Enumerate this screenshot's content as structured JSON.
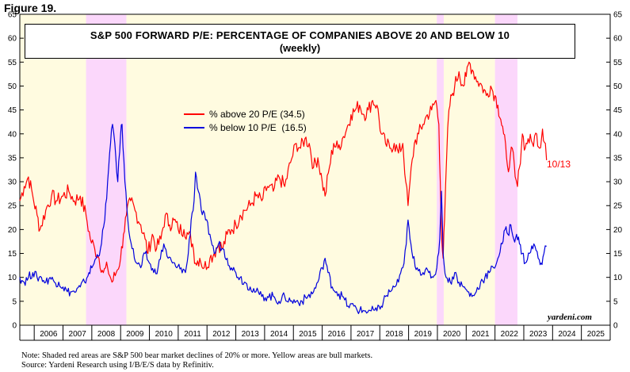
{
  "figure_label": "Figure 19.",
  "title_line1": "S&P 500 FORWARD P/E: PERCENTAGE OF COMPANIES ABOVE 20 AND BELOW 10",
  "title_line2": "(weekly)",
  "end_label": "10/13",
  "watermark": "yardeni.com",
  "note_line1": "Note: Shaded red areas are S&P 500 bear market declines of 20% or more. Yellow areas are bull markets.",
  "note_line2": "Source: Yardeni Research using I/B/E/S data by Refinitiv.",
  "colors": {
    "above20": "#ff0000",
    "below10": "#0000dd",
    "bull": "#fffbe0",
    "bear": "#fbd7fb"
  },
  "chart_data": {
    "type": "line",
    "title": "S&P 500 FORWARD P/E: PERCENTAGE OF COMPANIES ABOVE 20 AND BELOW 10",
    "subtitle": "(weekly)",
    "xlim": [
      2005.5,
      2026.0
    ],
    "ylim": [
      0,
      65
    ],
    "y_ticks": [
      0,
      5,
      10,
      15,
      20,
      25,
      30,
      35,
      40,
      45,
      50,
      55,
      60,
      65
    ],
    "x_ticks": [
      "2006",
      "2007",
      "2008",
      "2009",
      "2010",
      "2011",
      "2012",
      "2013",
      "2014",
      "2015",
      "2016",
      "2017",
      "2018",
      "2019",
      "2020",
      "2021",
      "2022",
      "2023",
      "2024",
      "2025"
    ],
    "grid": false,
    "legend_position": "center-left",
    "bull_periods": [
      [
        2005.5,
        2007.8
      ],
      [
        2009.2,
        2019.98
      ],
      [
        2020.22,
        2022.0
      ]
    ],
    "bear_periods": [
      [
        2007.8,
        2009.2
      ],
      [
        2019.98,
        2020.22
      ],
      [
        2022.0,
        2022.78
      ]
    ],
    "series": [
      {
        "name": "% above 20 P/E (34.5)",
        "color": "#ff0000",
        "points": [
          [
            2005.5,
            26
          ],
          [
            2005.65,
            29
          ],
          [
            2005.8,
            31
          ],
          [
            2005.95,
            27
          ],
          [
            2006.1,
            23
          ],
          [
            2006.2,
            20
          ],
          [
            2006.4,
            24
          ],
          [
            2006.6,
            27
          ],
          [
            2006.8,
            26
          ],
          [
            2007.0,
            27
          ],
          [
            2007.2,
            28
          ],
          [
            2007.4,
            26
          ],
          [
            2007.6,
            27
          ],
          [
            2007.8,
            23
          ],
          [
            2007.95,
            18
          ],
          [
            2008.1,
            16
          ],
          [
            2008.25,
            14
          ],
          [
            2008.4,
            11
          ],
          [
            2008.55,
            12
          ],
          [
            2008.7,
            9
          ],
          [
            2008.85,
            11
          ],
          [
            2009.0,
            14
          ],
          [
            2009.1,
            19
          ],
          [
            2009.2,
            23
          ],
          [
            2009.35,
            26
          ],
          [
            2009.5,
            24
          ],
          [
            2009.7,
            21
          ],
          [
            2009.85,
            18
          ],
          [
            2009.95,
            15
          ],
          [
            2010.1,
            19
          ],
          [
            2010.25,
            16
          ],
          [
            2010.4,
            18
          ],
          [
            2010.55,
            23
          ],
          [
            2010.7,
            21
          ],
          [
            2010.85,
            22
          ],
          [
            2011.0,
            20
          ],
          [
            2011.2,
            20
          ],
          [
            2011.35,
            19
          ],
          [
            2011.5,
            17
          ],
          [
            2011.6,
            13
          ],
          [
            2011.75,
            14
          ],
          [
            2011.9,
            12
          ],
          [
            2012.1,
            14
          ],
          [
            2012.25,
            15
          ],
          [
            2012.4,
            17
          ],
          [
            2012.55,
            16
          ],
          [
            2012.7,
            19
          ],
          [
            2012.85,
            20
          ],
          [
            2013.0,
            21
          ],
          [
            2013.15,
            23
          ],
          [
            2013.3,
            24
          ],
          [
            2013.5,
            25
          ],
          [
            2013.7,
            27
          ],
          [
            2013.9,
            26
          ],
          [
            2014.1,
            29
          ],
          [
            2014.3,
            28
          ],
          [
            2014.5,
            31
          ],
          [
            2014.7,
            29
          ],
          [
            2014.9,
            34
          ],
          [
            2015.1,
            38
          ],
          [
            2015.25,
            37
          ],
          [
            2015.4,
            39
          ],
          [
            2015.55,
            38
          ],
          [
            2015.7,
            33
          ],
          [
            2015.85,
            35
          ],
          [
            2016.0,
            30
          ],
          [
            2016.1,
            27
          ],
          [
            2016.25,
            33
          ],
          [
            2016.4,
            38
          ],
          [
            2016.55,
            37
          ],
          [
            2016.7,
            39
          ],
          [
            2016.85,
            41
          ],
          [
            2017.0,
            44
          ],
          [
            2017.15,
            45
          ],
          [
            2017.3,
            46
          ],
          [
            2017.45,
            44
          ],
          [
            2017.6,
            45
          ],
          [
            2017.75,
            47
          ],
          [
            2017.9,
            46
          ],
          [
            2018.05,
            40
          ],
          [
            2018.2,
            38
          ],
          [
            2018.35,
            37
          ],
          [
            2018.5,
            38
          ],
          [
            2018.65,
            36
          ],
          [
            2018.8,
            38
          ],
          [
            2018.9,
            30
          ],
          [
            2018.98,
            25
          ],
          [
            2019.05,
            30
          ],
          [
            2019.2,
            38
          ],
          [
            2019.35,
            40
          ],
          [
            2019.5,
            42
          ],
          [
            2019.65,
            44
          ],
          [
            2019.8,
            45
          ],
          [
            2019.95,
            47
          ],
          [
            2020.05,
            42
          ],
          [
            2020.1,
            30
          ],
          [
            2020.15,
            18
          ],
          [
            2020.2,
            14
          ],
          [
            2020.25,
            22
          ],
          [
            2020.32,
            35
          ],
          [
            2020.4,
            45
          ],
          [
            2020.5,
            48
          ],
          [
            2020.6,
            50
          ],
          [
            2020.75,
            53
          ],
          [
            2020.9,
            50
          ],
          [
            2021.0,
            52
          ],
          [
            2021.1,
            55
          ],
          [
            2021.25,
            53
          ],
          [
            2021.4,
            51
          ],
          [
            2021.55,
            50
          ],
          [
            2021.7,
            48
          ],
          [
            2021.85,
            50
          ],
          [
            2022.0,
            48
          ],
          [
            2022.1,
            46
          ],
          [
            2022.2,
            43
          ],
          [
            2022.3,
            40
          ],
          [
            2022.4,
            35
          ],
          [
            2022.5,
            33
          ],
          [
            2022.6,
            37
          ],
          [
            2022.7,
            31
          ],
          [
            2022.78,
            29
          ],
          [
            2022.85,
            33
          ],
          [
            2022.95,
            40
          ],
          [
            2023.05,
            37
          ],
          [
            2023.15,
            39
          ],
          [
            2023.3,
            38
          ],
          [
            2023.45,
            40
          ],
          [
            2023.55,
            37
          ],
          [
            2023.65,
            41
          ],
          [
            2023.75,
            38
          ],
          [
            2023.79,
            34.5
          ]
        ]
      },
      {
        "name": "% below 10 P/E  (16.5)",
        "color": "#0000dd",
        "points": [
          [
            2005.5,
            10
          ],
          [
            2005.65,
            9
          ],
          [
            2005.8,
            10
          ],
          [
            2005.95,
            11
          ],
          [
            2006.1,
            10
          ],
          [
            2006.25,
            10
          ],
          [
            2006.4,
            9
          ],
          [
            2006.55,
            10
          ],
          [
            2006.7,
            9
          ],
          [
            2006.85,
            9
          ],
          [
            2007.0,
            8
          ],
          [
            2007.15,
            7
          ],
          [
            2007.3,
            7
          ],
          [
            2007.45,
            7
          ],
          [
            2007.6,
            8
          ],
          [
            2007.75,
            9
          ],
          [
            2007.9,
            11
          ],
          [
            2008.0,
            12
          ],
          [
            2008.15,
            14
          ],
          [
            2008.3,
            16
          ],
          [
            2008.45,
            22
          ],
          [
            2008.55,
            30
          ],
          [
            2008.65,
            38
          ],
          [
            2008.72,
            42
          ],
          [
            2008.8,
            38
          ],
          [
            2008.9,
            30
          ],
          [
            2009.0,
            40
          ],
          [
            2009.05,
            42
          ],
          [
            2009.15,
            30
          ],
          [
            2009.25,
            22
          ],
          [
            2009.4,
            16
          ],
          [
            2009.55,
            13
          ],
          [
            2009.7,
            12
          ],
          [
            2009.85,
            15
          ],
          [
            2010.0,
            13
          ],
          [
            2010.15,
            11
          ],
          [
            2010.3,
            12
          ],
          [
            2010.5,
            17
          ],
          [
            2010.65,
            14
          ],
          [
            2010.8,
            13
          ],
          [
            2010.95,
            12
          ],
          [
            2011.1,
            12
          ],
          [
            2011.25,
            11
          ],
          [
            2011.35,
            15
          ],
          [
            2011.45,
            22
          ],
          [
            2011.55,
            26
          ],
          [
            2011.6,
            32
          ],
          [
            2011.7,
            28
          ],
          [
            2011.8,
            24
          ],
          [
            2011.95,
            22
          ],
          [
            2012.1,
            19
          ],
          [
            2012.25,
            15
          ],
          [
            2012.4,
            17
          ],
          [
            2012.55,
            16
          ],
          [
            2012.7,
            14
          ],
          [
            2012.85,
            12
          ],
          [
            2013.0,
            11
          ],
          [
            2013.15,
            10
          ],
          [
            2013.3,
            9
          ],
          [
            2013.5,
            8
          ],
          [
            2013.7,
            7
          ],
          [
            2013.9,
            6
          ],
          [
            2014.1,
            6
          ],
          [
            2014.3,
            6
          ],
          [
            2014.5,
            5
          ],
          [
            2014.7,
            6
          ],
          [
            2014.9,
            5
          ],
          [
            2015.1,
            5
          ],
          [
            2015.3,
            5
          ],
          [
            2015.5,
            6
          ],
          [
            2015.7,
            7
          ],
          [
            2015.85,
            9
          ],
          [
            2016.0,
            12
          ],
          [
            2016.1,
            14
          ],
          [
            2016.2,
            11
          ],
          [
            2016.35,
            8
          ],
          [
            2016.5,
            7
          ],
          [
            2016.7,
            6
          ],
          [
            2016.9,
            4
          ],
          [
            2017.1,
            4
          ],
          [
            2017.3,
            3
          ],
          [
            2017.5,
            3
          ],
          [
            2017.7,
            3
          ],
          [
            2017.9,
            3
          ],
          [
            2018.05,
            4
          ],
          [
            2018.2,
            6
          ],
          [
            2018.35,
            7
          ],
          [
            2018.5,
            8
          ],
          [
            2018.65,
            9
          ],
          [
            2018.8,
            12
          ],
          [
            2018.92,
            17
          ],
          [
            2018.98,
            22
          ],
          [
            2019.05,
            18
          ],
          [
            2019.15,
            14
          ],
          [
            2019.3,
            12
          ],
          [
            2019.5,
            11
          ],
          [
            2019.7,
            11
          ],
          [
            2019.85,
            10
          ],
          [
            2019.98,
            12
          ],
          [
            2020.08,
            18
          ],
          [
            2020.14,
            28
          ],
          [
            2020.2,
            15
          ],
          [
            2020.3,
            10
          ],
          [
            2020.45,
            9
          ],
          [
            2020.6,
            11
          ],
          [
            2020.75,
            9
          ],
          [
            2020.9,
            8
          ],
          [
            2021.05,
            7
          ],
          [
            2021.2,
            6
          ],
          [
            2021.35,
            7
          ],
          [
            2021.5,
            9
          ],
          [
            2021.65,
            10
          ],
          [
            2021.8,
            11
          ],
          [
            2021.95,
            12
          ],
          [
            2022.1,
            14
          ],
          [
            2022.25,
            17
          ],
          [
            2022.35,
            20
          ],
          [
            2022.45,
            19
          ],
          [
            2022.55,
            21
          ],
          [
            2022.65,
            18
          ],
          [
            2022.75,
            19
          ],
          [
            2022.85,
            17
          ],
          [
            2022.95,
            15
          ],
          [
            2023.05,
            13
          ],
          [
            2023.2,
            15
          ],
          [
            2023.35,
            17
          ],
          [
            2023.5,
            14
          ],
          [
            2023.6,
            13
          ],
          [
            2023.7,
            15
          ],
          [
            2023.79,
            16.5
          ]
        ]
      }
    ]
  }
}
